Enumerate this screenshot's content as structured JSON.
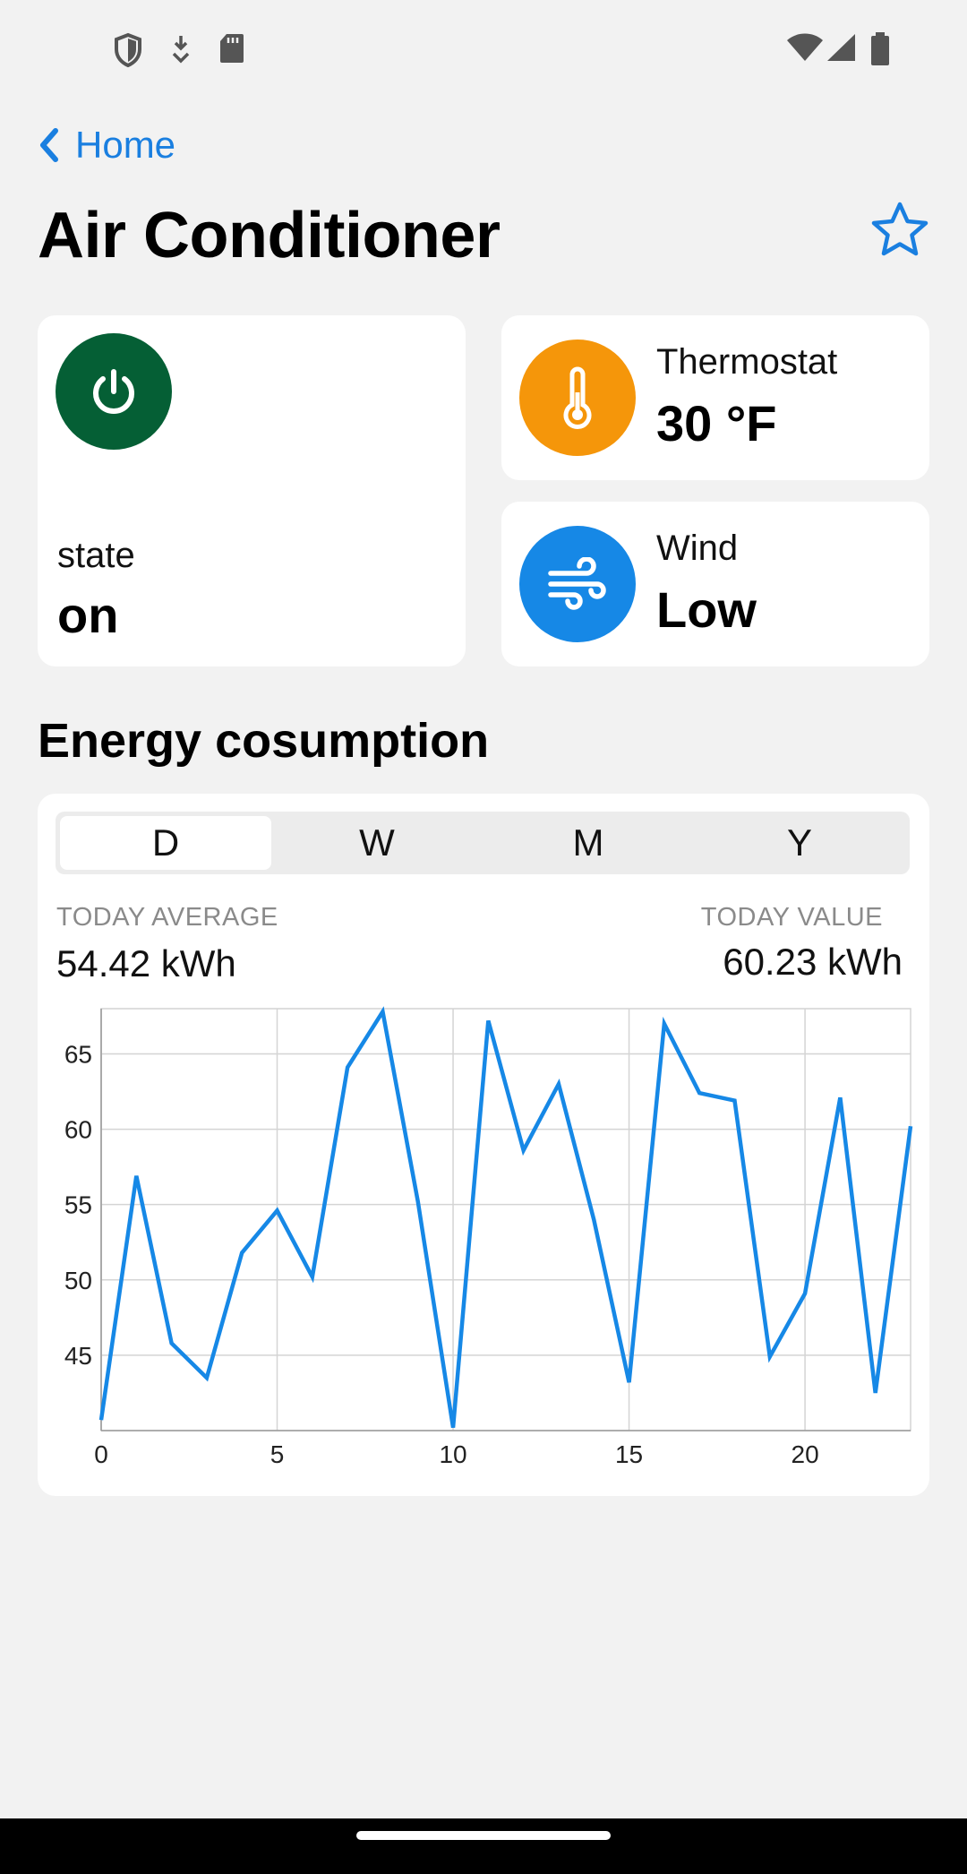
{
  "header": {
    "back_label": "Home",
    "title": "Air Conditioner"
  },
  "power_card": {
    "label": "state",
    "value": "on",
    "color": "#055f35"
  },
  "thermostat_card": {
    "label": "Thermostat",
    "value": "30 °F",
    "color": "#f5960a"
  },
  "wind_card": {
    "label": "Wind",
    "value": "Low",
    "color": "#1688e6"
  },
  "energy": {
    "section_title": "Energy cosumption",
    "tabs": [
      "D",
      "W",
      "M",
      "Y"
    ],
    "active_tab": "D",
    "average_label": "TODAY AVERAGE",
    "average_value": "54.42 kWh",
    "today_label": "TODAY VALUE",
    "today_value": "60.23 kWh"
  },
  "accent_color": "#1a7fe0",
  "chart_data": {
    "type": "line",
    "x": [
      0,
      1,
      2,
      3,
      4,
      5,
      6,
      7,
      8,
      9,
      10,
      11,
      12,
      13,
      14,
      15,
      16,
      17,
      18,
      19,
      20,
      21,
      22,
      23
    ],
    "series": [
      {
        "values": [
          40.7,
          56.9,
          45.8,
          43.5,
          51.8,
          54.6,
          50.2,
          64.1,
          67.8,
          55.2,
          40.2,
          67.2,
          58.6,
          63.0,
          54.0,
          43.2,
          67.0,
          62.4,
          61.9,
          44.9,
          49.1,
          62.1,
          42.5,
          60.2
        ]
      }
    ],
    "xticks": [
      0,
      5,
      10,
      15,
      20
    ],
    "yticks": [
      45,
      50,
      55,
      60,
      65
    ],
    "xlim": [
      0,
      23
    ],
    "ylim": [
      40,
      68
    ],
    "grid": true,
    "line_color": "#1688e6"
  }
}
